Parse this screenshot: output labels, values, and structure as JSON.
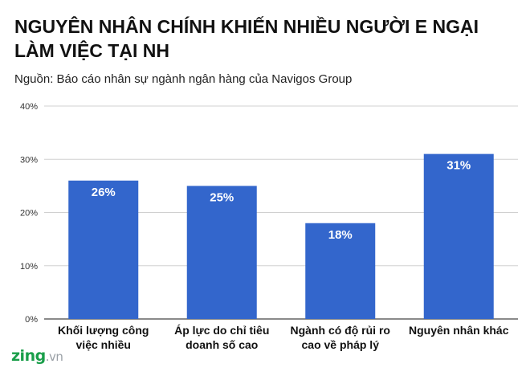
{
  "chart_data": {
    "type": "bar",
    "title": "NGUYÊN NHÂN CHÍNH KHIẾN NHIỀU NGƯỜI E NGẠI LÀM VIỆC TẠI NH",
    "subtitle": "Nguồn: Báo cáo nhân sự ngành ngân hàng của Navigos Group",
    "categories": [
      [
        "Khối lượng công",
        "việc nhiều"
      ],
      [
        "Áp lực do chỉ tiêu",
        "doanh số cao"
      ],
      [
        "Ngành có độ rủi ro",
        "cao về pháp lý"
      ],
      [
        "Nguyên nhân khác"
      ]
    ],
    "values": [
      26,
      25,
      18,
      31
    ],
    "value_labels": [
      "26%",
      "25%",
      "18%",
      "31%"
    ],
    "y_ticks": [
      "0%",
      "10%",
      "20%",
      "30%",
      "40%"
    ],
    "ylim": [
      0,
      40
    ],
    "grid": true,
    "bar_color": "#3366cc"
  },
  "brand": {
    "primary": "zing",
    "suffix": ".vn"
  }
}
